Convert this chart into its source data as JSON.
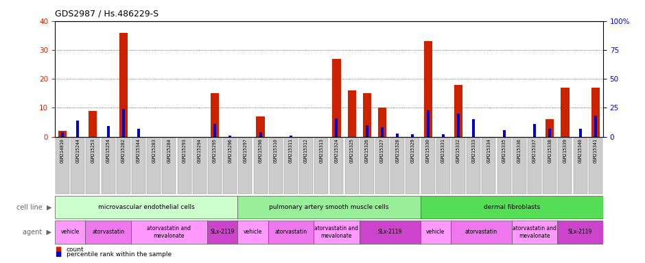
{
  "title": "GDS2987 / Hs.486229-S",
  "samples": [
    "GSM214810",
    "GSM215244",
    "GSM215253",
    "GSM215254",
    "GSM215282",
    "GSM215344",
    "GSM215283",
    "GSM215284",
    "GSM215293",
    "GSM215294",
    "GSM215295",
    "GSM215296",
    "GSM215297",
    "GSM215298",
    "GSM215310",
    "GSM215311",
    "GSM215312",
    "GSM215313",
    "GSM215324",
    "GSM215325",
    "GSM215326",
    "GSM215327",
    "GSM215328",
    "GSM215329",
    "GSM215330",
    "GSM215331",
    "GSM215332",
    "GSM215333",
    "GSM215334",
    "GSM215335",
    "GSM215336",
    "GSM215337",
    "GSM215338",
    "GSM215339",
    "GSM215340",
    "GSM215341"
  ],
  "count": [
    2,
    0,
    9,
    0,
    36,
    0,
    0,
    0,
    0,
    0,
    15,
    0,
    0,
    7,
    0,
    0,
    0,
    0,
    27,
    16,
    15,
    10,
    0,
    0,
    33,
    0,
    18,
    0,
    0,
    0,
    0,
    0,
    6,
    17,
    0,
    17
  ],
  "percentile": [
    4,
    14,
    0,
    9,
    24,
    7,
    0,
    0,
    0,
    0,
    11,
    1,
    0,
    4,
    0,
    1,
    0,
    0,
    16,
    0,
    10,
    8,
    3,
    2,
    23,
    2,
    20,
    15,
    0,
    6,
    0,
    11,
    7,
    0,
    7,
    18
  ],
  "cell_line_defs": [
    {
      "label": "microvascular endothelial cells",
      "start": 0,
      "end": 11,
      "color": "#CCFFCC"
    },
    {
      "label": "pulmonary artery smooth muscle cells",
      "start": 12,
      "end": 23,
      "color": "#99EE99"
    },
    {
      "label": "dermal fibroblasts",
      "start": 24,
      "end": 35,
      "color": "#55DD55"
    }
  ],
  "agent_defs": [
    {
      "label": "vehicle",
      "start": 0,
      "end": 1,
      "color": "#FF99FF"
    },
    {
      "label": "atorvastatin",
      "start": 2,
      "end": 4,
      "color": "#EE77EE"
    },
    {
      "label": "atorvastatin and\nmevalonate",
      "start": 5,
      "end": 9,
      "color": "#FF99FF"
    },
    {
      "label": "SLx-2119",
      "start": 10,
      "end": 11,
      "color": "#CC44CC"
    },
    {
      "label": "vehicle",
      "start": 12,
      "end": 13,
      "color": "#FF99FF"
    },
    {
      "label": "atorvastatin",
      "start": 14,
      "end": 16,
      "color": "#EE77EE"
    },
    {
      "label": "atorvastatin and\nmevalonate",
      "start": 17,
      "end": 19,
      "color": "#FF99FF"
    },
    {
      "label": "SLx-2119",
      "start": 20,
      "end": 23,
      "color": "#CC44CC"
    },
    {
      "label": "vehicle",
      "start": 24,
      "end": 25,
      "color": "#FF99FF"
    },
    {
      "label": "atorvastatin",
      "start": 26,
      "end": 29,
      "color": "#EE77EE"
    },
    {
      "label": "atorvastatin and\nmevalonate",
      "start": 30,
      "end": 32,
      "color": "#FF99FF"
    },
    {
      "label": "SLx-2119",
      "start": 33,
      "end": 35,
      "color": "#CC44CC"
    }
  ],
  "ylim_left": [
    0,
    40
  ],
  "ylim_right": [
    0,
    100
  ],
  "yticks_left": [
    0,
    10,
    20,
    30,
    40
  ],
  "yticks_right": [
    0,
    25,
    50,
    75,
    100
  ],
  "bar_color_red": "#CC2200",
  "bar_color_blue": "#0000CC",
  "axis_color_red": "#CC2200",
  "axis_color_blue": "#0000CC",
  "grid_color": "#444444",
  "tick_label_bg": "#CCCCCC"
}
